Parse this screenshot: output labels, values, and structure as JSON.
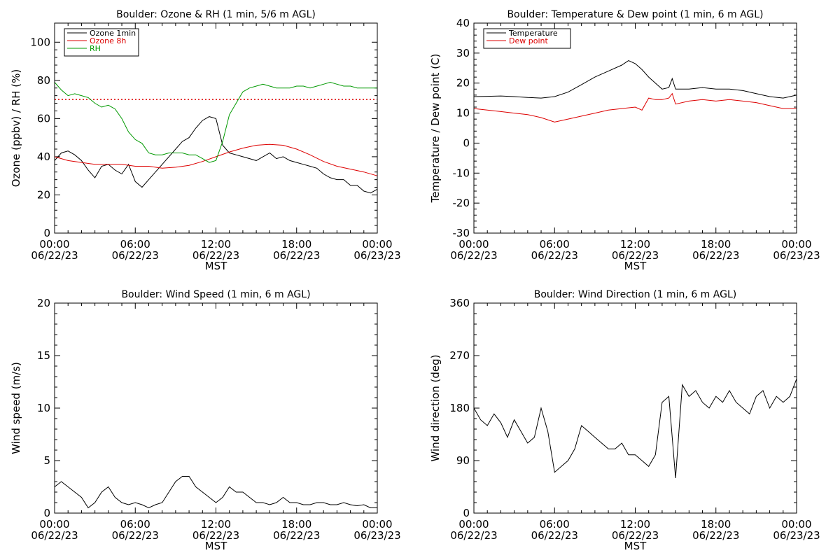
{
  "chart_data": [
    {
      "type": "line",
      "title": "Boulder: Ozone & RH (1 min, 5/6 m AGL)",
      "xlabel": "MST",
      "ylabel": "Ozone (ppbv) / RH (%)",
      "ylim": [
        0,
        110
      ],
      "yticks": [
        0,
        20,
        40,
        60,
        80,
        100
      ],
      "xlim": [
        "2023-06-22 00:00",
        "2023-06-23 00:00"
      ],
      "xticks": [
        {
          "time": "00:00",
          "date": "06/22/23",
          "hour": 0
        },
        {
          "time": "06:00",
          "date": "06/22/23",
          "hour": 6
        },
        {
          "time": "12:00",
          "date": "06/22/23",
          "hour": 12
        },
        {
          "time": "18:00",
          "date": "06/22/23",
          "hour": 18
        },
        {
          "time": "00:00",
          "date": "06/23/23",
          "hour": 24
        }
      ],
      "legend_position": "top-left",
      "reference_lines": [
        {
          "y": 70,
          "color": "#dd0000",
          "style": "dotted"
        }
      ],
      "series": [
        {
          "name": "Ozone 1min",
          "color": "#000000",
          "x": [
            0,
            0.5,
            1,
            1.5,
            2,
            2.5,
            3,
            3.5,
            4,
            4.5,
            5,
            5.5,
            6,
            6.5,
            7,
            7.5,
            8,
            8.5,
            9,
            9.5,
            10,
            10.5,
            11,
            11.5,
            12,
            12.5,
            13,
            13.5,
            14,
            14.5,
            15,
            15.5,
            16,
            16.5,
            17,
            17.5,
            18,
            18.5,
            19,
            19.5,
            20,
            20.5,
            21,
            21.5,
            22,
            22.5,
            23,
            23.5,
            24
          ],
          "values": [
            38,
            42,
            43,
            41,
            38,
            33,
            29,
            35,
            36,
            33,
            31,
            36,
            27,
            24,
            28,
            32,
            36,
            40,
            44,
            48,
            50,
            55,
            59,
            61,
            60,
            46,
            42,
            41,
            40,
            39,
            38,
            40,
            42,
            39,
            40,
            38,
            37,
            36,
            35,
            34,
            31,
            29,
            28,
            28,
            25,
            25,
            22,
            21,
            23
          ]
        },
        {
          "name": "Ozone 8h",
          "color": "#dd0000",
          "x": [
            0,
            1,
            2,
            3,
            4,
            5,
            6,
            7,
            8,
            9,
            10,
            11,
            12,
            13,
            14,
            15,
            16,
            17,
            18,
            19,
            20,
            21,
            22,
            23,
            24
          ],
          "values": [
            40,
            38,
            37,
            36,
            36,
            36,
            35,
            35,
            34,
            34.5,
            35.5,
            37.5,
            40,
            42.5,
            44.5,
            46,
            46.5,
            46,
            44,
            41,
            37.5,
            35,
            33.5,
            32,
            30
          ]
        },
        {
          "name": "RH",
          "color": "#009900",
          "x": [
            0,
            0.5,
            1,
            1.5,
            2,
            2.5,
            3,
            3.5,
            4,
            4.5,
            5,
            5.5,
            6,
            6.5,
            7,
            7.5,
            8,
            8.5,
            9,
            9.5,
            10,
            10.5,
            11,
            11.5,
            12,
            12.5,
            13,
            13.5,
            14,
            14.5,
            15,
            15.5,
            16,
            16.5,
            17,
            17.5,
            18,
            18.5,
            19,
            19.5,
            20,
            20.5,
            21,
            21.5,
            22,
            22.5,
            23,
            23.5,
            24
          ],
          "values": [
            79,
            75,
            72,
            73,
            72,
            71,
            68,
            66,
            67,
            65,
            60,
            53,
            49,
            47,
            42,
            41,
            41,
            42,
            42,
            42,
            41,
            41,
            39,
            37,
            38,
            48,
            62,
            68,
            74,
            76,
            77,
            78,
            77,
            76,
            76,
            76,
            77,
            77,
            76,
            77,
            78,
            79,
            78,
            77,
            77,
            76,
            76,
            76,
            76
          ]
        }
      ]
    },
    {
      "type": "line",
      "title": "Boulder: Temperature & Dew point (1 min, 6 m AGL)",
      "xlabel": "MST",
      "ylabel": "Temperature / Dew point (C)",
      "ylim": [
        -30,
        40
      ],
      "yticks": [
        -30,
        -20,
        -10,
        0,
        10,
        20,
        30,
        40
      ],
      "xlim": [
        "2023-06-22 00:00",
        "2023-06-23 00:00"
      ],
      "xticks": [
        {
          "time": "00:00",
          "date": "06/22/23",
          "hour": 0
        },
        {
          "time": "06:00",
          "date": "06/22/23",
          "hour": 6
        },
        {
          "time": "12:00",
          "date": "06/22/23",
          "hour": 12
        },
        {
          "time": "18:00",
          "date": "06/22/23",
          "hour": 18
        },
        {
          "time": "00:00",
          "date": "06/23/23",
          "hour": 24
        }
      ],
      "legend_position": "top-left",
      "series": [
        {
          "name": "Temperature",
          "color": "#000000",
          "x": [
            0,
            1,
            2,
            3,
            4,
            5,
            6,
            7,
            8,
            9,
            10,
            11,
            11.5,
            12,
            12.5,
            13,
            13.5,
            14,
            14.5,
            14.75,
            15,
            16,
            17,
            18,
            19,
            20,
            21,
            22,
            23,
            24
          ],
          "values": [
            15.5,
            15.6,
            15.7,
            15.5,
            15.2,
            15,
            15.5,
            17,
            19.5,
            22,
            24,
            26,
            27.5,
            26.5,
            24.5,
            22,
            20,
            18,
            18.5,
            21.5,
            18,
            18,
            18.5,
            18,
            18,
            17.5,
            16.5,
            15.5,
            15,
            16
          ]
        },
        {
          "name": "Dew point",
          "color": "#dd0000",
          "x": [
            0,
            1,
            2,
            3,
            4,
            5,
            6,
            7,
            8,
            9,
            10,
            11,
            12,
            12.5,
            13,
            13.5,
            14,
            14.5,
            14.75,
            15,
            16,
            17,
            18,
            19,
            20,
            21,
            22,
            23,
            24
          ],
          "values": [
            11.5,
            11,
            10.5,
            10,
            9.5,
            8.5,
            7,
            8,
            9,
            10,
            11,
            11.5,
            12,
            11,
            15,
            14.5,
            14.5,
            15,
            16.5,
            13,
            14,
            14.5,
            14,
            14.5,
            14,
            13.5,
            12.5,
            11.5,
            11.5
          ]
        }
      ]
    },
    {
      "type": "line",
      "title": "Boulder: Wind Speed (1 min, 6 m AGL)",
      "xlabel": "MST",
      "ylabel": "Wind speed (m/s)",
      "ylim": [
        0,
        20
      ],
      "yticks": [
        0,
        5,
        10,
        15,
        20
      ],
      "xlim": [
        "2023-06-22 00:00",
        "2023-06-23 00:00"
      ],
      "xticks": [
        {
          "time": "00:00",
          "date": "06/22/23",
          "hour": 0
        },
        {
          "time": "06:00",
          "date": "06/22/23",
          "hour": 6
        },
        {
          "time": "12:00",
          "date": "06/22/23",
          "hour": 12
        },
        {
          "time": "18:00",
          "date": "06/22/23",
          "hour": 18
        },
        {
          "time": "00:00",
          "date": "06/23/23",
          "hour": 24
        }
      ],
      "series": [
        {
          "name": "",
          "color": "#000000",
          "x": [
            0,
            0.5,
            1,
            1.5,
            2,
            2.5,
            3,
            3.5,
            4,
            4.5,
            5,
            5.5,
            6,
            6.5,
            7,
            7.5,
            8,
            8.5,
            9,
            9.5,
            10,
            10.5,
            11,
            11.5,
            12,
            12.5,
            13,
            13.5,
            14,
            14.5,
            15,
            15.5,
            16,
            16.5,
            17,
            17.5,
            18,
            18.5,
            19,
            19.5,
            20,
            20.5,
            21,
            21.5,
            22,
            22.5,
            23,
            23.5,
            24
          ],
          "values": [
            2.5,
            3,
            2.5,
            2,
            1.5,
            0.5,
            1,
            2,
            2.5,
            1.5,
            1,
            0.8,
            1,
            0.8,
            0.5,
            0.8,
            1,
            2,
            3,
            3.5,
            3.5,
            2.5,
            2,
            1.5,
            1,
            1.5,
            2.5,
            2,
            2,
            1.5,
            1,
            1,
            0.8,
            1,
            1.5,
            1,
            1,
            0.8,
            0.8,
            1,
            1,
            0.8,
            0.8,
            1,
            0.8,
            0.7,
            0.8,
            0.5,
            0.5
          ]
        }
      ]
    },
    {
      "type": "line",
      "title": "Boulder: Wind Direction (1 min, 6 m AGL)",
      "xlabel": "MST",
      "ylabel": "Wind direction (deg)",
      "ylim": [
        0,
        360
      ],
      "yticks": [
        0,
        90,
        180,
        270,
        360
      ],
      "xlim": [
        "2023-06-22 00:00",
        "2023-06-23 00:00"
      ],
      "xticks": [
        {
          "time": "00:00",
          "date": "06/22/23",
          "hour": 0
        },
        {
          "time": "06:00",
          "date": "06/22/23",
          "hour": 6
        },
        {
          "time": "12:00",
          "date": "06/22/23",
          "hour": 12
        },
        {
          "time": "18:00",
          "date": "06/22/23",
          "hour": 18
        },
        {
          "time": "00:00",
          "date": "06/23/23",
          "hour": 24
        }
      ],
      "series": [
        {
          "name": "",
          "color": "#000000",
          "x": [
            0,
            0.5,
            1,
            1.5,
            2,
            2.5,
            3,
            3.5,
            4,
            4.5,
            5,
            5.5,
            6,
            6.5,
            7,
            7.5,
            8,
            8.5,
            9,
            9.5,
            10,
            10.5,
            11,
            11.5,
            12,
            12.5,
            13,
            13.5,
            14,
            14.5,
            15,
            15.5,
            16,
            16.5,
            17,
            17.5,
            18,
            18.5,
            19,
            19.5,
            20,
            20.5,
            21,
            21.5,
            22,
            22.5,
            23,
            23.5,
            24
          ],
          "values": [
            180,
            160,
            150,
            170,
            155,
            130,
            160,
            140,
            120,
            130,
            180,
            140,
            70,
            80,
            90,
            110,
            150,
            140,
            130,
            120,
            110,
            110,
            120,
            100,
            100,
            90,
            80,
            100,
            190,
            200,
            60,
            220,
            200,
            210,
            190,
            180,
            200,
            190,
            210,
            190,
            180,
            170,
            200,
            210,
            180,
            200,
            190,
            200,
            230
          ]
        }
      ]
    }
  ]
}
